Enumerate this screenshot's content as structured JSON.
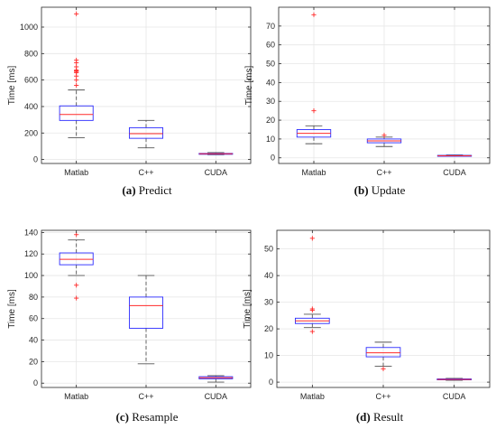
{
  "chart_data": [
    {
      "type": "box",
      "caption_label": "(a)",
      "caption_text": "Predict",
      "ylabel": "Time [ms]",
      "ylim": [
        -30,
        1150
      ],
      "yticks": [
        0,
        200,
        400,
        600,
        800,
        1000
      ],
      "grid": true,
      "categories": [
        "Matlab",
        "C++",
        "CUDA"
      ],
      "boxes": [
        {
          "category": "Matlab",
          "whisker_low": 165,
          "q1": 295,
          "median": 340,
          "q3": 405,
          "whisker_high": 525,
          "outliers": [
            560,
            600,
            630,
            655,
            665,
            670,
            675,
            700,
            730,
            750,
            1100
          ]
        },
        {
          "category": "C++",
          "whisker_low": 88,
          "q1": 160,
          "median": 195,
          "q3": 240,
          "whisker_high": 295,
          "outliers": []
        },
        {
          "category": "CUDA",
          "whisker_low": 36,
          "q1": 40,
          "median": 43,
          "q3": 46,
          "whisker_high": 52,
          "outliers": []
        }
      ]
    },
    {
      "type": "box",
      "caption_label": "(b)",
      "caption_text": "Update",
      "ylabel": "Time [ms]",
      "ylim": [
        -3,
        80
      ],
      "yticks": [
        0,
        10,
        20,
        30,
        40,
        50,
        60,
        70
      ],
      "grid": true,
      "categories": [
        "Matlab",
        "C++",
        "CUDA"
      ],
      "boxes": [
        {
          "category": "Matlab",
          "whisker_low": 7.5,
          "q1": 11,
          "median": 13,
          "q3": 15,
          "whisker_high": 17,
          "outliers": [
            25,
            76
          ]
        },
        {
          "category": "C++",
          "whisker_low": 6,
          "q1": 8,
          "median": 9,
          "q3": 10,
          "whisker_high": 11,
          "outliers": [
            12
          ]
        },
        {
          "category": "CUDA",
          "whisker_low": 0.8,
          "q1": 1,
          "median": 1.1,
          "q3": 1.3,
          "whisker_high": 1.5,
          "outliers": []
        }
      ]
    },
    {
      "type": "box",
      "caption_label": "(c)",
      "caption_text": "Resample",
      "ylabel": "Time [ms]",
      "ylim": [
        -4,
        142
      ],
      "yticks": [
        0,
        20,
        40,
        60,
        80,
        100,
        120,
        140
      ],
      "grid": true,
      "categories": [
        "Matlab",
        "C++",
        "CUDA"
      ],
      "boxes": [
        {
          "category": "Matlab",
          "whisker_low": 100,
          "q1": 110,
          "median": 115,
          "q3": 121,
          "whisker_high": 133,
          "outliers": [
            79,
            91,
            138
          ]
        },
        {
          "category": "C++",
          "whisker_low": 18,
          "q1": 51,
          "median": 72,
          "q3": 80,
          "whisker_high": 100,
          "outliers": []
        },
        {
          "category": "CUDA",
          "whisker_low": 1,
          "q1": 4,
          "median": 5,
          "q3": 6,
          "whisker_high": 7,
          "outliers": []
        }
      ]
    },
    {
      "type": "box",
      "caption_label": "(d)",
      "caption_text": "Result",
      "ylabel": "Time [ms]",
      "ylim": [
        -2,
        57
      ],
      "yticks": [
        0,
        10,
        20,
        30,
        40,
        50
      ],
      "grid": true,
      "categories": [
        "Matlab",
        "C++",
        "CUDA"
      ],
      "boxes": [
        {
          "category": "Matlab",
          "whisker_low": 20.5,
          "q1": 22,
          "median": 23,
          "q3": 24,
          "whisker_high": 25.5,
          "outliers": [
            19,
            27,
            27.5,
            54
          ]
        },
        {
          "category": "C++",
          "whisker_low": 6,
          "q1": 9.5,
          "median": 11,
          "q3": 13,
          "whisker_high": 15,
          "outliers": [
            5
          ]
        },
        {
          "category": "CUDA",
          "whisker_low": 0.7,
          "q1": 0.9,
          "median": 1,
          "q3": 1.2,
          "whisker_high": 1.4,
          "outliers": []
        }
      ]
    }
  ],
  "style": {
    "box_color": "#2b2bff",
    "median_color": "#ff2a2a",
    "whisker_color": "#555555",
    "outlier_color": "#ff2a2a",
    "grid_color": "#e6e6e6",
    "axis_color": "#262626"
  }
}
